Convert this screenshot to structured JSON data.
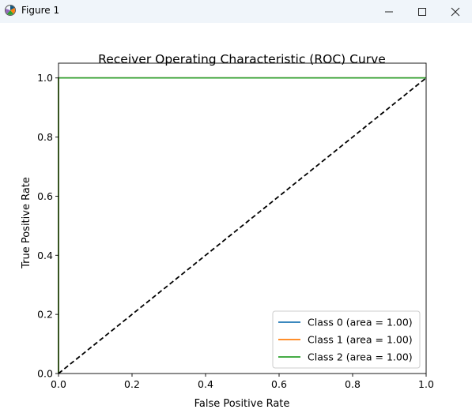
{
  "window": {
    "title": "Figure 1",
    "icon": "matplotlib-icon",
    "controls": {
      "minimize_icon": "minimize-icon",
      "maximize_icon": "maximize-icon",
      "close_icon": "close-icon"
    }
  },
  "chart_data": {
    "type": "line",
    "title": "Receiver Operating Characteristic (ROC) Curve",
    "xlabel": "False Positive Rate",
    "ylabel": "True Positive Rate",
    "xlim": [
      0.0,
      1.0
    ],
    "ylim": [
      0.0,
      1.05
    ],
    "xticks": [
      0.0,
      0.2,
      0.4,
      0.6,
      0.8,
      1.0
    ],
    "yticks": [
      0.0,
      0.2,
      0.4,
      0.6,
      0.8,
      1.0
    ],
    "xtick_labels": [
      "0.0",
      "0.2",
      "0.4",
      "0.6",
      "0.8",
      "1.0"
    ],
    "ytick_labels": [
      "0.0",
      "0.2",
      "0.4",
      "0.6",
      "0.8",
      "1.0"
    ],
    "grid": false,
    "legend_position": "lower right",
    "series": [
      {
        "name": "Class 0 (area = 1.00)",
        "color": "#1f77b4",
        "x": [
          0.0,
          0.0,
          1.0
        ],
        "y": [
          0.0,
          1.0,
          1.0
        ]
      },
      {
        "name": "Class 1 (area = 1.00)",
        "color": "#ff7f0e",
        "x": [
          0.0,
          0.0,
          1.0
        ],
        "y": [
          0.0,
          1.0,
          1.0
        ]
      },
      {
        "name": "Class 2 (area = 1.00)",
        "color": "#2ca02c",
        "x": [
          0.0,
          0.0,
          1.0
        ],
        "y": [
          0.0,
          1.0,
          1.0
        ]
      }
    ],
    "reference_line": {
      "x": [
        0.0,
        1.0
      ],
      "y": [
        0.0,
        1.0
      ],
      "color": "#000000",
      "style": "dashed"
    }
  }
}
